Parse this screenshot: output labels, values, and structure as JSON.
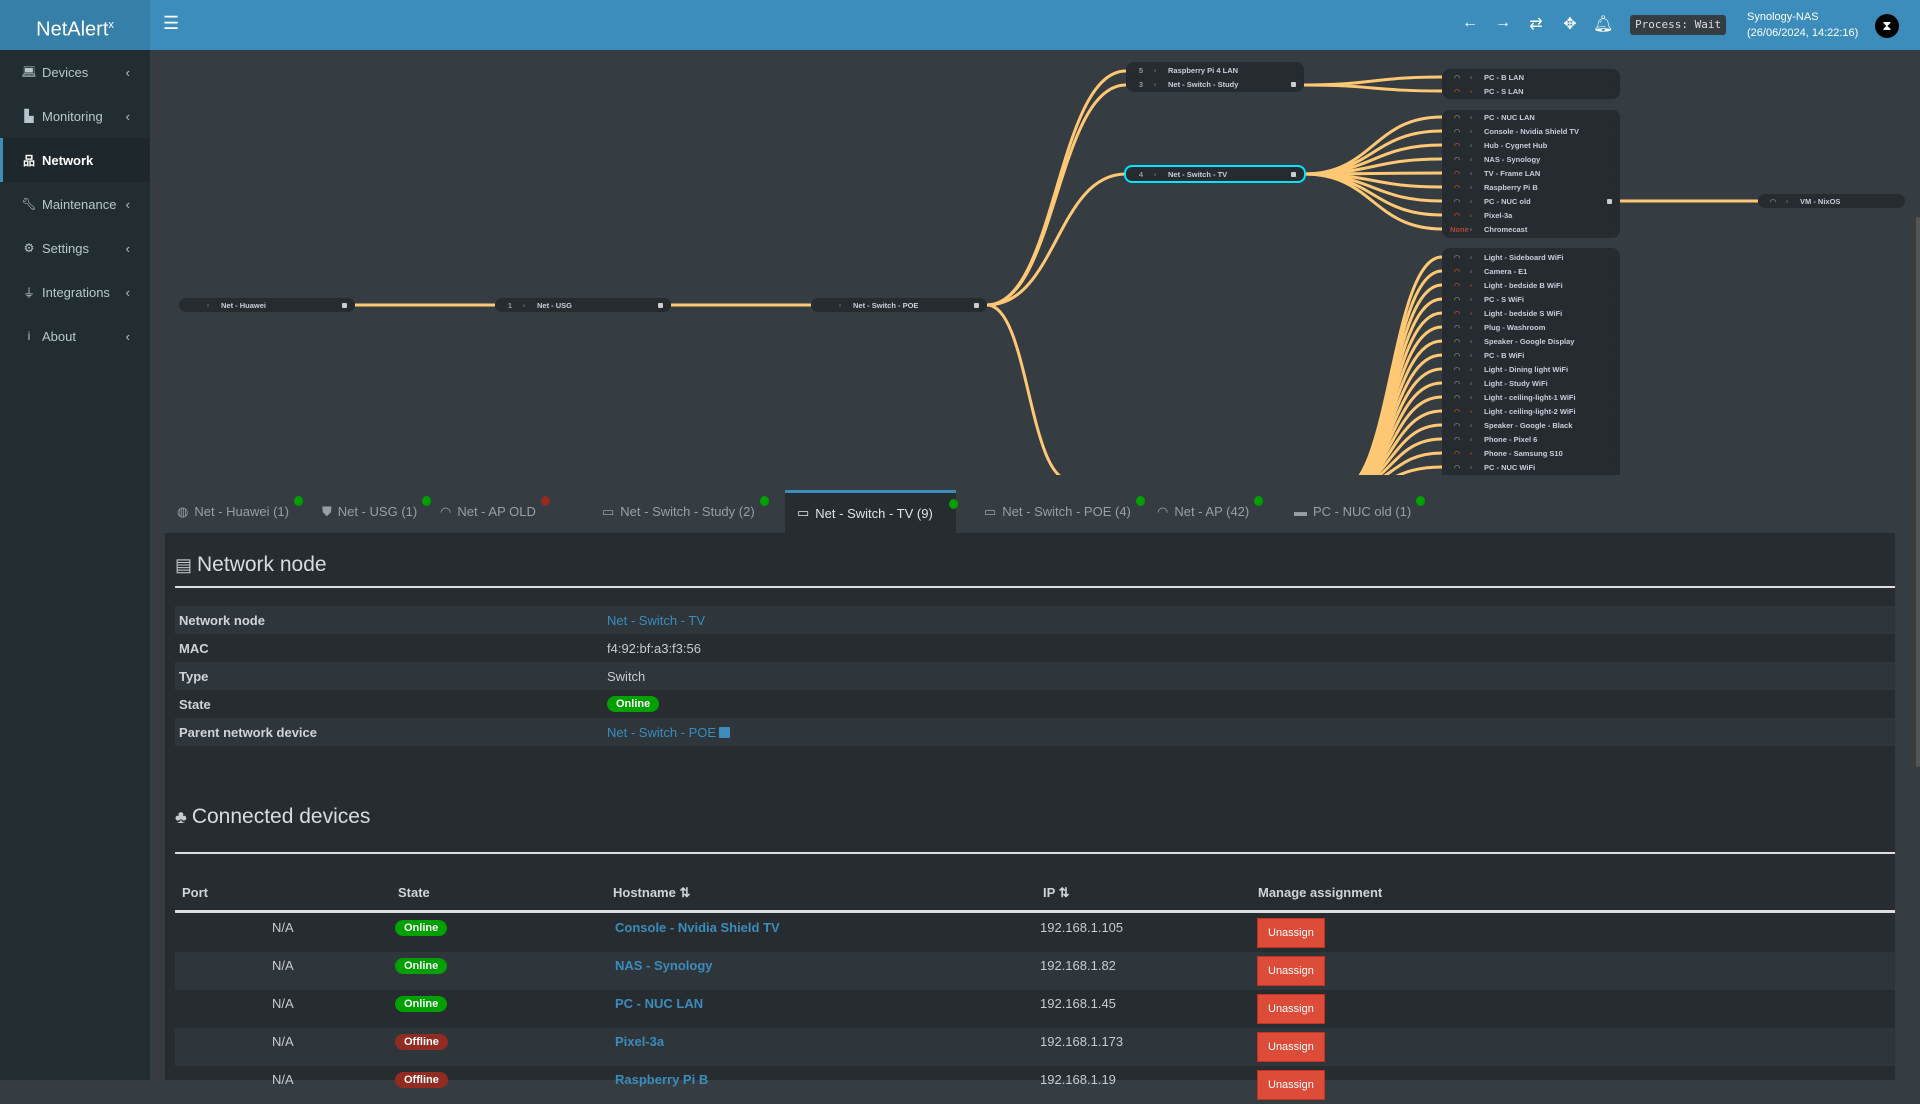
{
  "header": {
    "logo": "NetAlert",
    "logo_sup": "x",
    "process": "Process: Wait",
    "host": "Synology-NAS",
    "datetime": "(26/06/2024, 14:22:16)"
  },
  "sidebar": {
    "items": [
      {
        "label": "Devices",
        "icon": "laptop-icon"
      },
      {
        "label": "Monitoring",
        "icon": "chart-icon"
      },
      {
        "label": "Network",
        "icon": "network-icon",
        "active": true
      },
      {
        "label": "Maintenance",
        "icon": "wrench-icon"
      },
      {
        "label": "Settings",
        "icon": "gear-icon"
      },
      {
        "label": "Integrations",
        "icon": "plug-icon"
      },
      {
        "label": "About",
        "icon": "info-icon"
      }
    ]
  },
  "tree": {
    "chain": [
      {
        "name": "Net - Huawei",
        "port": ""
      },
      {
        "name": "Net - USG",
        "port": "1"
      },
      {
        "name": "Net - Switch - POE",
        "port": ""
      }
    ],
    "poe_children": [
      {
        "name": "Raspberry Pi 4 LAN",
        "port": "5"
      },
      {
        "name": "Net - Switch - Study",
        "port": "3"
      }
    ],
    "switch_tv": {
      "name": "Net - Switch - TV",
      "port": "4"
    },
    "study_children": [
      {
        "name": "PC - B LAN",
        "online": true
      },
      {
        "name": "PC - S LAN",
        "online": false
      }
    ],
    "tv_children": [
      {
        "name": "PC - NUC LAN",
        "online": true
      },
      {
        "name": "Console - Nvidia Shield TV",
        "online": true
      },
      {
        "name": "Hub - Cygnet Hub",
        "online": false
      },
      {
        "name": "NAS - Synology",
        "online": true
      },
      {
        "name": "TV - Frame LAN",
        "online": false
      },
      {
        "name": "Raspberry Pi B",
        "online": false
      },
      {
        "name": "PC - NUC old",
        "online": true
      },
      {
        "name": "Pixel-3a",
        "online": false
      },
      {
        "name": "Chromecast",
        "online": false,
        "port": "None"
      }
    ],
    "nuc_children": [
      {
        "name": "VM - NixOS",
        "online": true
      }
    ],
    "ap_children": [
      {
        "name": "Light - Sideboard WiFi",
        "online": true
      },
      {
        "name": "Camera - E1",
        "online": false
      },
      {
        "name": "Light - bedside B WiFi",
        "online": false
      },
      {
        "name": "PC - S WiFi",
        "online": true
      },
      {
        "name": "Light - bedside S WiFi",
        "online": false
      },
      {
        "name": "Plug - Washroom",
        "online": true
      },
      {
        "name": "Speaker - Google Display",
        "online": true
      },
      {
        "name": "PC - B WiFi",
        "online": true
      },
      {
        "name": "Light - Dining light WiFi",
        "online": true
      },
      {
        "name": "Light - Study WiFi",
        "online": true
      },
      {
        "name": "Light - ceiling-light-1 WiFi",
        "online": true
      },
      {
        "name": "Light - ceiling-light-2 WiFi",
        "online": false
      },
      {
        "name": "Speaker - Google - Black",
        "online": true
      },
      {
        "name": "Phone - Pixel 6",
        "online": true
      },
      {
        "name": "Phone - Samsung S10",
        "online": false
      },
      {
        "name": "PC - NUC WiFi",
        "online": true
      }
    ],
    "link_color": "#ffc875",
    "selected_color": "#00e5ff"
  },
  "tabs": [
    {
      "label": "Net - Huawei (1)",
      "icon": "globe-icon",
      "online": true
    },
    {
      "label": "Net - USG (1)",
      "icon": "shield-icon",
      "online": true
    },
    {
      "label": "Net - AP OLD",
      "icon": "wifi-icon",
      "online": false
    },
    {
      "label": "Net - Switch - Study (2)",
      "icon": "switch-icon",
      "online": true
    },
    {
      "label": "Net - Switch - TV (9)",
      "icon": "switch-icon",
      "online": true,
      "active": true
    },
    {
      "label": "Net - Switch - POE (4)",
      "icon": "switch-icon",
      "online": true
    },
    {
      "label": "Net - AP (42)",
      "icon": "wifi-icon",
      "online": true
    },
    {
      "label": "PC - NUC old (1)",
      "icon": "pc-icon",
      "online": true
    }
  ],
  "node_section": {
    "title": "Network node",
    "rows": [
      {
        "key": "Network node",
        "value": "Net - Switch - TV",
        "type": "link"
      },
      {
        "key": "MAC",
        "value": "f4:92:bf:a3:f3:56"
      },
      {
        "key": "Type",
        "value": "Switch"
      },
      {
        "key": "State",
        "value": "Online",
        "type": "badge"
      },
      {
        "key": "Parent network device",
        "value": "Net - Switch - POE",
        "type": "extlink"
      }
    ]
  },
  "devices_section": {
    "title": "Connected devices",
    "columns": [
      "Port",
      "State",
      "Hostname",
      "IP",
      "Manage assignment"
    ],
    "rows": [
      {
        "port": "N/A",
        "state": "Online",
        "hostname": "Console - Nvidia Shield TV",
        "ip": "192.168.1.105",
        "action": "Unassign"
      },
      {
        "port": "N/A",
        "state": "Online",
        "hostname": "NAS - Synology",
        "ip": "192.168.1.82",
        "action": "Unassign"
      },
      {
        "port": "N/A",
        "state": "Online",
        "hostname": "PC - NUC LAN",
        "ip": "192.168.1.45",
        "action": "Unassign"
      },
      {
        "port": "N/A",
        "state": "Offline",
        "hostname": "Pixel-3a",
        "ip": "192.168.1.173",
        "action": "Unassign"
      },
      {
        "port": "N/A",
        "state": "Offline",
        "hostname": "Raspberry Pi B",
        "ip": "192.168.1.19",
        "action": "Unassign"
      }
    ]
  },
  "colors": {
    "accent": "#3c8dbc",
    "online": "#00a000",
    "offline": "#922b21",
    "danger": "#dd4b39"
  }
}
